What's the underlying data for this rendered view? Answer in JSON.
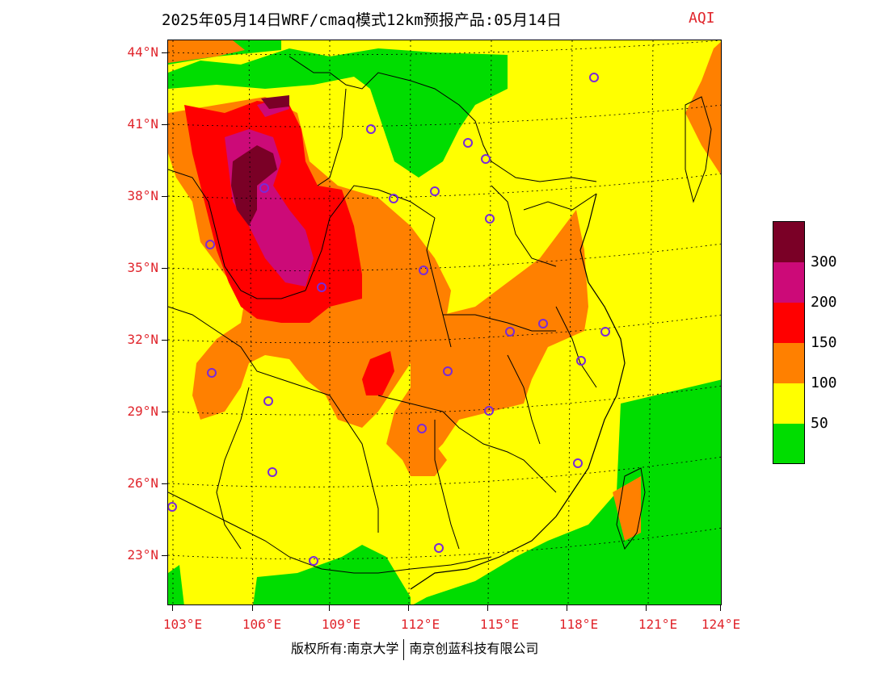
{
  "title": "2025年05月14日WRF/cmaq模式12km预报产品:05月14日",
  "variable": "AQI",
  "map": {
    "lat_labels": [
      "44°N",
      "41°N",
      "38°N",
      "35°N",
      "32°N",
      "29°N",
      "26°N",
      "23°N"
    ],
    "lon_labels": [
      "103°E",
      "106°E",
      "109°E",
      "112°E",
      "115°E",
      "118°E",
      "121°E",
      "124°E"
    ]
  },
  "legend": {
    "labels": [
      "300",
      "200",
      "150",
      "100",
      "50"
    ],
    "colors": {
      "gt300": "#7a0026",
      "200_300": "#cc0a78",
      "150_200": "#ff0000",
      "100_150": "#ff8000",
      "50_100": "#ffff00",
      "0_50": "#00dd00"
    }
  },
  "copyright": {
    "left": "版权所有:南京大学",
    "right": "南京创蓝科技有限公司"
  }
}
